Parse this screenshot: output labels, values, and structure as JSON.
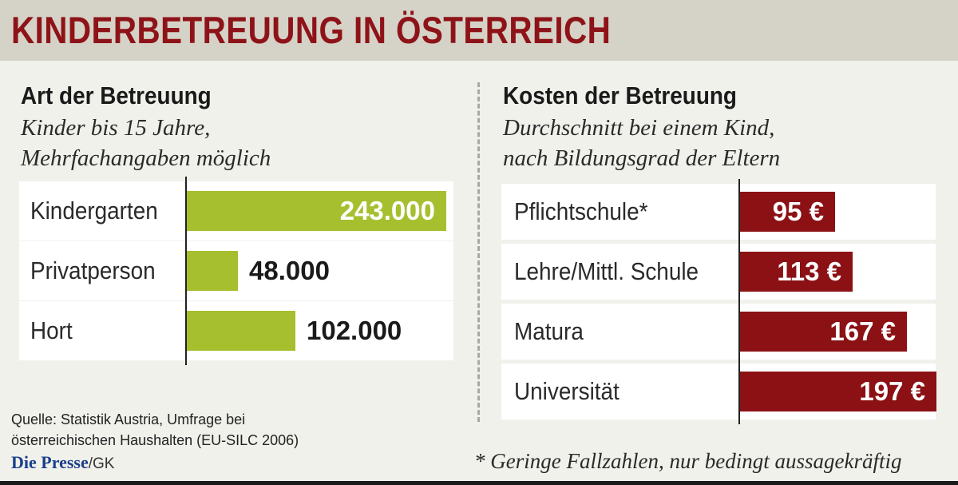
{
  "title": "KINDERBETREUUNG IN ÖSTERREICH",
  "chart_data": [
    {
      "type": "bar",
      "orientation": "horizontal",
      "title": "Art der Betreuung",
      "subtitle_lines": [
        "Kinder bis 15 Jahre,",
        "Mehrfachangaben möglich"
      ],
      "categories": [
        "Kindergarten",
        "Privatperson",
        "Hort"
      ],
      "values": [
        243000,
        48000,
        102000
      ],
      "value_labels": [
        "243.000",
        "48.000",
        "102.000"
      ],
      "xlim": [
        0,
        250000
      ],
      "bar_color": "#a6bf2f",
      "grid": false,
      "legend": "none"
    },
    {
      "type": "bar",
      "orientation": "horizontal",
      "title": "Kosten der Betreuung",
      "subtitle_lines": [
        "Durchschnitt bei einem Kind,",
        "nach Bildungsgrad der Eltern"
      ],
      "categories": [
        "Pflichtschule*",
        "Lehre/Mittl. Schule",
        "Matura",
        "Universität"
      ],
      "values": [
        95,
        113,
        167,
        197
      ],
      "value_labels": [
        "95 €",
        "113 €",
        "167 €",
        "197 €"
      ],
      "xlim": [
        0,
        200
      ],
      "bar_color": "#8b1115",
      "grid": false,
      "legend": "none"
    }
  ],
  "source_lines": [
    "Quelle: Statistik Austria, Umfrage bei",
    "österreichischen Haushalten (EU-SILC 2006)"
  ],
  "brand": {
    "logo": "Die Presse",
    "suffix": "/GK",
    "color": "#1b3f8b"
  },
  "footnote": "* Geringe Fallzahlen, nur bedingt aussagekräftig"
}
